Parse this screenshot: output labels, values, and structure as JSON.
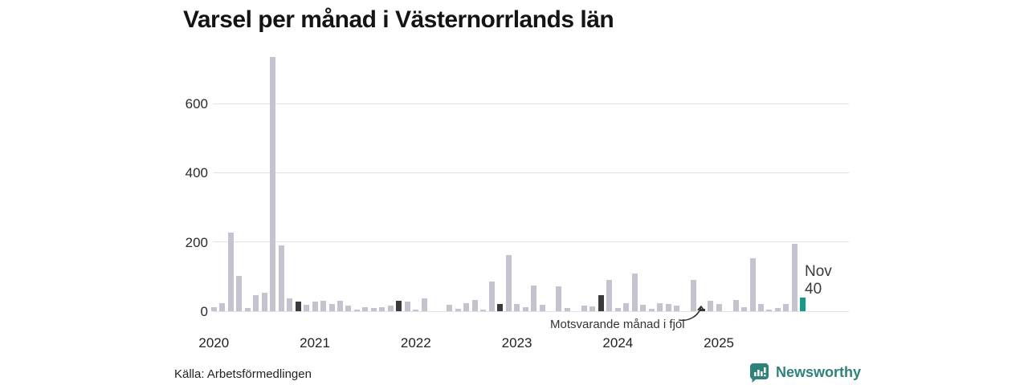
{
  "title": "Varsel per månad i Västernorrlands län",
  "source": "Källa: Arbetsförmedlingen",
  "brand": {
    "name": "Newsworthy",
    "color": "#2e827a"
  },
  "annotation": {
    "text": "Motsvarande månad i fjol"
  },
  "highlight_label": {
    "month": "Nov",
    "value": "40"
  },
  "colors": {
    "bar": "#c5c3d0",
    "dark_bar": "#3b3b3b",
    "highlight_bar": "#17998a",
    "grid": "#e2e2e4",
    "axis_text": "#2b2b2b"
  },
  "chart_data": {
    "type": "bar",
    "title": "Varsel per månad i Västernorrlands län",
    "xlabel": "",
    "ylabel": "",
    "y_ticks": [
      0,
      200,
      400,
      600
    ],
    "ylim": [
      0,
      760
    ],
    "grid": "horizontal",
    "x_tick_labels": [
      "2020",
      "2021",
      "2022",
      "2023",
      "2024",
      "2025"
    ],
    "dark_months": [
      "2020-11",
      "2021-11",
      "2022-11",
      "2023-11",
      "2024-11"
    ],
    "highlight_month": "2025-11",
    "points": [
      {
        "month": "2020-01",
        "value": 12
      },
      {
        "month": "2020-02",
        "value": 23
      },
      {
        "month": "2020-03",
        "value": 228
      },
      {
        "month": "2020-04",
        "value": 102
      },
      {
        "month": "2020-05",
        "value": 9
      },
      {
        "month": "2020-06",
        "value": 47
      },
      {
        "month": "2020-07",
        "value": 53
      },
      {
        "month": "2020-08",
        "value": 735
      },
      {
        "month": "2020-09",
        "value": 190
      },
      {
        "month": "2020-10",
        "value": 37
      },
      {
        "month": "2020-11",
        "value": 27
      },
      {
        "month": "2020-12",
        "value": 19
      },
      {
        "month": "2021-01",
        "value": 27
      },
      {
        "month": "2021-02",
        "value": 31
      },
      {
        "month": "2021-03",
        "value": 20
      },
      {
        "month": "2021-04",
        "value": 30
      },
      {
        "month": "2021-05",
        "value": 16
      },
      {
        "month": "2021-06",
        "value": 4
      },
      {
        "month": "2021-07",
        "value": 11
      },
      {
        "month": "2021-08",
        "value": 10
      },
      {
        "month": "2021-09",
        "value": 11
      },
      {
        "month": "2021-10",
        "value": 16
      },
      {
        "month": "2021-11",
        "value": 31
      },
      {
        "month": "2021-12",
        "value": 28
      },
      {
        "month": "2022-01",
        "value": 5
      },
      {
        "month": "2022-02",
        "value": 36
      },
      {
        "month": "2022-03",
        "value": 0
      },
      {
        "month": "2022-04",
        "value": 0
      },
      {
        "month": "2022-05",
        "value": 18
      },
      {
        "month": "2022-06",
        "value": 8
      },
      {
        "month": "2022-07",
        "value": 23
      },
      {
        "month": "2022-08",
        "value": 33
      },
      {
        "month": "2022-09",
        "value": 4
      },
      {
        "month": "2022-10",
        "value": 85
      },
      {
        "month": "2022-11",
        "value": 22
      },
      {
        "month": "2022-12",
        "value": 163
      },
      {
        "month": "2023-01",
        "value": 21
      },
      {
        "month": "2023-02",
        "value": 12
      },
      {
        "month": "2023-03",
        "value": 75
      },
      {
        "month": "2023-04",
        "value": 19
      },
      {
        "month": "2023-05",
        "value": 0
      },
      {
        "month": "2023-06",
        "value": 73
      },
      {
        "month": "2023-07",
        "value": 9
      },
      {
        "month": "2023-08",
        "value": 0
      },
      {
        "month": "2023-09",
        "value": 17
      },
      {
        "month": "2023-10",
        "value": 14
      },
      {
        "month": "2023-11",
        "value": 47
      },
      {
        "month": "2023-12",
        "value": 90
      },
      {
        "month": "2024-01",
        "value": 9
      },
      {
        "month": "2024-02",
        "value": 23
      },
      {
        "month": "2024-03",
        "value": 110
      },
      {
        "month": "2024-04",
        "value": 19
      },
      {
        "month": "2024-05",
        "value": 7
      },
      {
        "month": "2024-06",
        "value": 23
      },
      {
        "month": "2024-07",
        "value": 20
      },
      {
        "month": "2024-08",
        "value": 16
      },
      {
        "month": "2024-09",
        "value": 0
      },
      {
        "month": "2024-10",
        "value": 90
      },
      {
        "month": "2024-11",
        "value": 6
      },
      {
        "month": "2024-12",
        "value": 30
      },
      {
        "month": "2025-01",
        "value": 21
      },
      {
        "month": "2025-02",
        "value": 0
      },
      {
        "month": "2025-03",
        "value": 33
      },
      {
        "month": "2025-04",
        "value": 12
      },
      {
        "month": "2025-05",
        "value": 153
      },
      {
        "month": "2025-06",
        "value": 21
      },
      {
        "month": "2025-07",
        "value": 5
      },
      {
        "month": "2025-08",
        "value": 9
      },
      {
        "month": "2025-09",
        "value": 21
      },
      {
        "month": "2025-10",
        "value": 194
      },
      {
        "month": "2025-11",
        "value": 40
      }
    ]
  }
}
